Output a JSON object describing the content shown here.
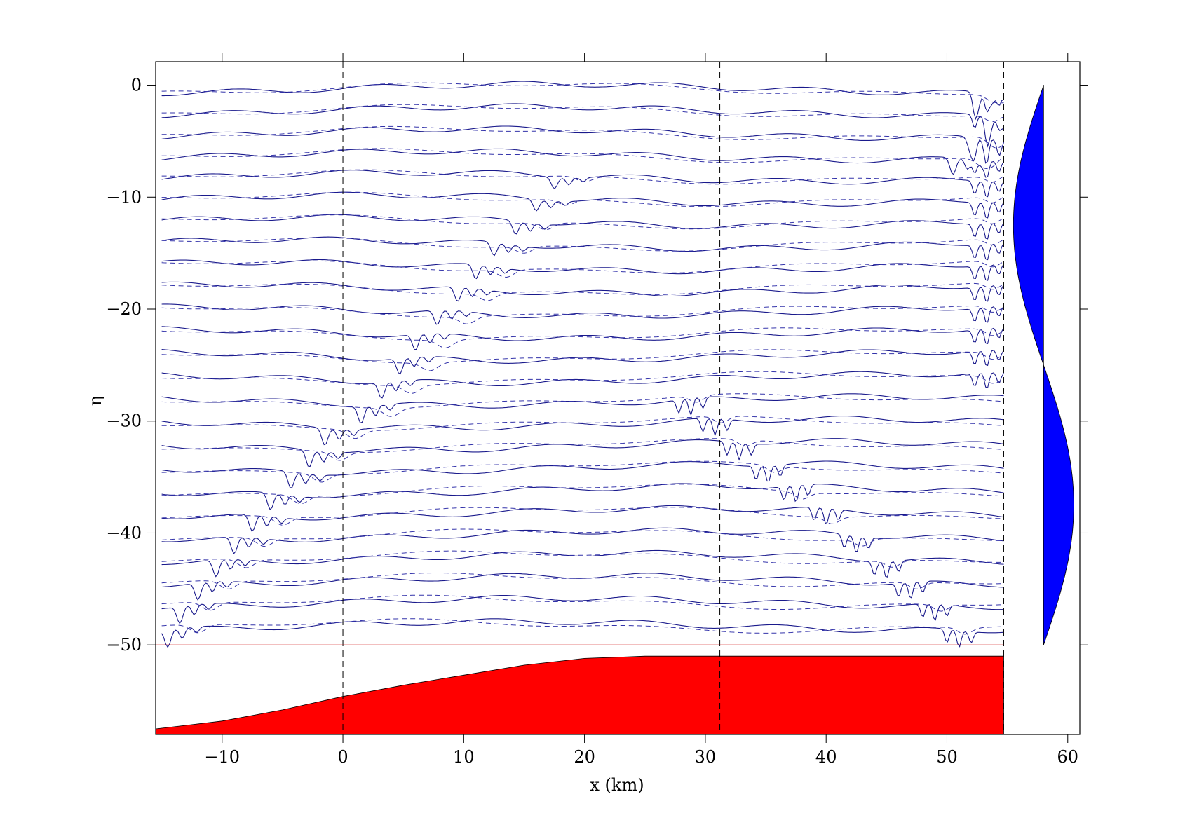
{
  "chart_data": {
    "type": "line",
    "title": "",
    "xlabel": "x (km)",
    "ylabel": "η",
    "xlim": [
      -15.5,
      61
    ],
    "ylim": [
      -58,
      2.1
    ],
    "xticks": [
      -10,
      0,
      10,
      20,
      30,
      40,
      50,
      60
    ],
    "xtick_labels": [
      "−10",
      "0",
      "10",
      "20",
      "30",
      "40",
      "50",
      "60"
    ],
    "yticks": [
      0,
      -10,
      -20,
      -30,
      -40,
      -50
    ],
    "ytick_labels": [
      "0",
      "−10",
      "−20",
      "−30",
      "−40",
      "−50"
    ],
    "grid": false,
    "legend": "none",
    "colors": {
      "solid_trace": "#1a1a8c",
      "dashed_trace": "#3333aa",
      "topography": "#ff0000",
      "mode_profile": "#0000ff",
      "reference_line": "#cc0000",
      "axis": "#000000"
    },
    "vertical_reference_lines_x": [
      0,
      31.2,
      54.7
    ],
    "horizontal_reference_line_y": -50,
    "trace_offsets": [
      -0.3,
      -2.3,
      -4.3,
      -6.3,
      -8.2,
      -10.2,
      -12.2,
      -14.2,
      -16.2,
      -18.2,
      -20.2,
      -22.2,
      -24.2,
      -26.2,
      -28.2,
      -30.2,
      -32.2,
      -34.2,
      -36.2,
      -38.2,
      -40.2,
      -42.2,
      -44.2,
      -46.2,
      -48.3
    ],
    "trace_x_range": [
      -15,
      54.7
    ],
    "series": [
      {
        "style": "solid",
        "description_points": "Per-trace wave packet positions (x in km) and depths",
        "packet_x": [
          52.5,
          53.5,
          52,
          50.5,
          17.5,
          16,
          14.3,
          12.5,
          11,
          9.5,
          7.8,
          6,
          4.7,
          3.2,
          1.5,
          -1.5,
          -2.8,
          -4.3,
          -6,
          -7.5,
          -9,
          -10.5,
          -12,
          -13.5,
          -14.5
        ],
        "packet_depth": [
          1.5,
          1.5,
          1.5,
          1.5,
          1,
          1,
          1.2,
          1.2,
          1.3,
          1.3,
          1.3,
          1.4,
          1.4,
          1.4,
          1.5,
          1.5,
          1.5,
          1.5,
          1.5,
          1.5,
          1.5,
          1.5,
          1.5,
          1.5,
          1.5
        ],
        "front_x": [
          52.3,
          52.3,
          52.3,
          52.3,
          52.3,
          52.3,
          52.3,
          52.3,
          52.3,
          52.3,
          52.3,
          52.3,
          52.3,
          52.3,
          27.8,
          29.8,
          31.8,
          34.2,
          36.5,
          39,
          41.5,
          44,
          46,
          48,
          50
        ]
      },
      {
        "style": "dashed",
        "description_points": "Comparison traces offset slightly from solid traces"
      }
    ],
    "topography": {
      "x": [
        -15.5,
        -10,
        -5,
        0,
        5,
        10,
        15,
        20,
        25,
        30,
        35,
        40,
        45,
        50,
        54.7
      ],
      "y": [
        -57.5,
        -56.8,
        -55.8,
        -54.6,
        -53.6,
        -52.7,
        -51.8,
        -51.2,
        -51,
        -51,
        -51,
        -51,
        -51,
        -51,
        -51
      ]
    },
    "mode_profile": {
      "baseline_x": 58,
      "amplitude_km": 2.5,
      "y_top": 0,
      "y_bottom": -50,
      "node_y": -25
    }
  }
}
